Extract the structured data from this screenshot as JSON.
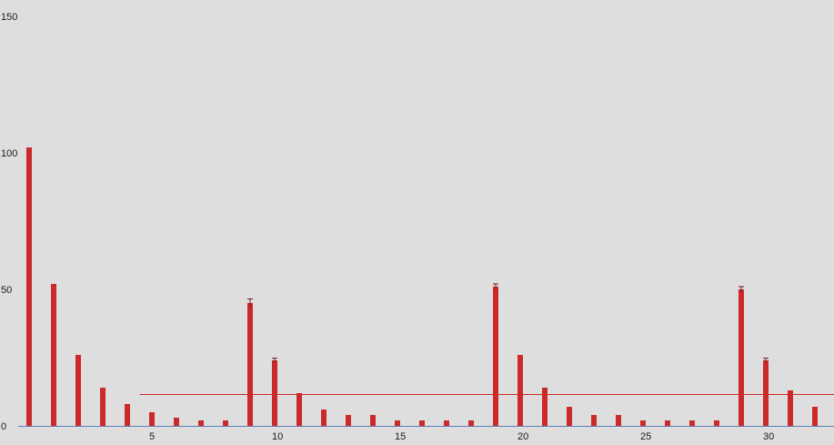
{
  "chart_data": {
    "type": "bar",
    "title": "",
    "xlabel": "",
    "ylabel": "",
    "ylim": [
      0,
      150
    ],
    "y_ticks": [
      0,
      50,
      100,
      150
    ],
    "x_ticks": [
      5,
      10,
      15,
      20,
      25,
      30
    ],
    "grid": false,
    "error_bars": true,
    "x": [
      0,
      1,
      2,
      3,
      4,
      5,
      6,
      7,
      8,
      9,
      10,
      11,
      12,
      13,
      14,
      15,
      16,
      17,
      18,
      19,
      20,
      21,
      22,
      23,
      24,
      25,
      26,
      27,
      28,
      29,
      30,
      31,
      32
    ],
    "values": [
      102,
      52,
      26,
      14,
      8,
      5,
      3,
      2,
      2,
      45,
      24,
      12,
      6,
      4,
      4,
      2,
      2,
      2,
      2,
      51,
      26,
      14,
      7,
      4,
      4,
      2,
      2,
      2,
      2,
      50,
      24,
      13,
      7
    ],
    "errors": [
      0,
      0,
      0,
      0,
      0,
      0,
      0,
      0,
      0,
      1.5,
      0.8,
      0,
      0,
      0,
      0,
      0,
      0,
      0,
      0,
      1,
      0,
      0,
      0,
      0,
      0,
      0,
      0,
      0,
      0,
      1,
      0.8,
      0,
      0
    ],
    "reference_line": {
      "y": 11.5,
      "x_start": 4.5
    },
    "colors": {
      "bar": "#cc2a2a",
      "reference_line": "#cc2a2a",
      "baseline": "#5b7fb8",
      "background": "#dedede",
      "text": "#1a1a1a"
    }
  }
}
